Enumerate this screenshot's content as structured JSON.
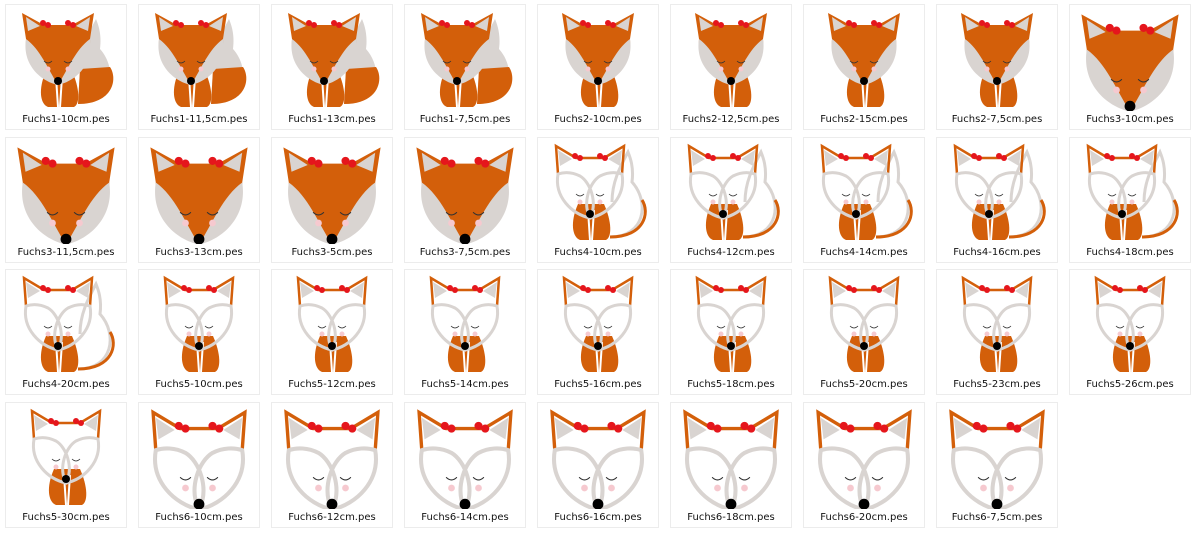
{
  "colors": {
    "fur": "#d35f0a",
    "light": "#d9d4d1",
    "bow": "#e5161c",
    "nose": "#000000",
    "cheek": "#f6c9cf"
  },
  "files": [
    {
      "name": "Fuchs1-10cm.pes",
      "design": "fox-sitting-filled"
    },
    {
      "name": "Fuchs1-11,5cm.pes",
      "design": "fox-sitting-filled"
    },
    {
      "name": "Fuchs1-13cm.pes",
      "design": "fox-sitting-filled"
    },
    {
      "name": "Fuchs1-7,5cm.pes",
      "design": "fox-sitting-filled"
    },
    {
      "name": "Fuchs2-10cm.pes",
      "design": "fox-sitting-notail"
    },
    {
      "name": "Fuchs2-12,5cm.pes",
      "design": "fox-sitting-notail"
    },
    {
      "name": "Fuchs2-15cm.pes",
      "design": "fox-sitting-notail"
    },
    {
      "name": "Fuchs2-7,5cm.pes",
      "design": "fox-sitting-notail"
    },
    {
      "name": "Fuchs3-10cm.pes",
      "design": "fox-head-filled"
    },
    {
      "name": "Fuchs3-11,5cm.pes",
      "design": "fox-head-filled"
    },
    {
      "name": "Fuchs3-13cm.pes",
      "design": "fox-head-filled"
    },
    {
      "name": "Fuchs3-5cm.pes",
      "design": "fox-head-filled"
    },
    {
      "name": "Fuchs3-7,5cm.pes",
      "design": "fox-head-filled"
    },
    {
      "name": "Fuchs4-10cm.pes",
      "design": "fox-outline-tail"
    },
    {
      "name": "Fuchs4-12cm.pes",
      "design": "fox-outline-tail"
    },
    {
      "name": "Fuchs4-14cm.pes",
      "design": "fox-outline-tail"
    },
    {
      "name": "Fuchs4-16cm.pes",
      "design": "fox-outline-tail"
    },
    {
      "name": "Fuchs4-18cm.pes",
      "design": "fox-outline-tail"
    },
    {
      "name": "Fuchs4-20cm.pes",
      "design": "fox-outline-tail"
    },
    {
      "name": "Fuchs5-10cm.pes",
      "design": "fox-outline-sitting"
    },
    {
      "name": "Fuchs5-12cm.pes",
      "design": "fox-outline-sitting"
    },
    {
      "name": "Fuchs5-14cm.pes",
      "design": "fox-outline-sitting"
    },
    {
      "name": "Fuchs5-16cm.pes",
      "design": "fox-outline-sitting"
    },
    {
      "name": "Fuchs5-18cm.pes",
      "design": "fox-outline-sitting"
    },
    {
      "name": "Fuchs5-20cm.pes",
      "design": "fox-outline-sitting"
    },
    {
      "name": "Fuchs5-23cm.pes",
      "design": "fox-outline-sitting"
    },
    {
      "name": "Fuchs5-26cm.pes",
      "design": "fox-outline-sitting"
    },
    {
      "name": "Fuchs5-30cm.pes",
      "design": "fox-outline-sitting"
    },
    {
      "name": "Fuchs6-10cm.pes",
      "design": "fox-outline-head"
    },
    {
      "name": "Fuchs6-12cm.pes",
      "design": "fox-outline-head"
    },
    {
      "name": "Fuchs6-14cm.pes",
      "design": "fox-outline-head"
    },
    {
      "name": "Fuchs6-16cm.pes",
      "design": "fox-outline-head"
    },
    {
      "name": "Fuchs6-18cm.pes",
      "design": "fox-outline-head"
    },
    {
      "name": "Fuchs6-20cm.pes",
      "design": "fox-outline-head"
    },
    {
      "name": "Fuchs6-7,5cm.pes",
      "design": "fox-outline-head"
    }
  ]
}
